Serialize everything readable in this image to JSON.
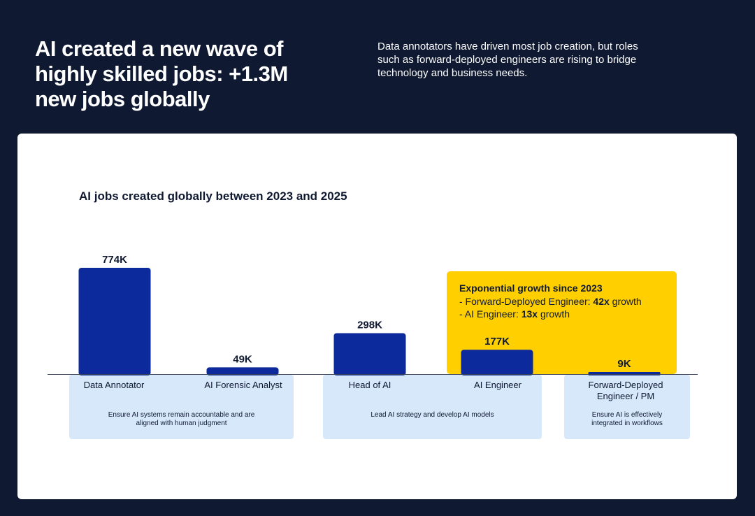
{
  "header": {
    "title": "AI created a new wave of highly skilled jobs: +1.3M new jobs globally",
    "subtitle": "Data annotators have driven most job creation, but roles such as forward-deployed engineers are rising to bridge technology and business needs."
  },
  "highlight": {
    "title": "Exponential growth since 2023",
    "line1_prefix": "- Forward-Deployed Engineer: ",
    "line1_value": "42x",
    "line1_suffix": " growth",
    "line2_prefix": "- AI Engineer: ",
    "line2_value": "13x",
    "line2_suffix": " growth"
  },
  "groups": [
    {
      "description": "Ensure AI systems remain accountable and are aligned with human judgment"
    },
    {
      "description": "Lead AI strategy and develop AI models"
    },
    {
      "description": "Ensure AI is effectively integrated in workflows"
    }
  ],
  "colors": {
    "background": "#0f1931",
    "bar": "#0c2a9b",
    "highlight": "#ffcf00",
    "group_box": "#d7e8fb"
  },
  "chart_data": {
    "type": "bar",
    "title": "AI jobs created globally between 2023 and 2025",
    "xlabel": "",
    "ylabel": "",
    "unit": "K",
    "categories": [
      "Data Annotator",
      "AI Forensic Analyst",
      "Head of AI",
      "AI Engineer",
      "Forward-Deployed Engineer / PM"
    ],
    "values": [
      774,
      49,
      298,
      177,
      9
    ],
    "value_labels": [
      "774K",
      "49K",
      "298K",
      "177K",
      "9K"
    ],
    "ylim": [
      0,
      774
    ],
    "grid": false,
    "legend": "none"
  }
}
